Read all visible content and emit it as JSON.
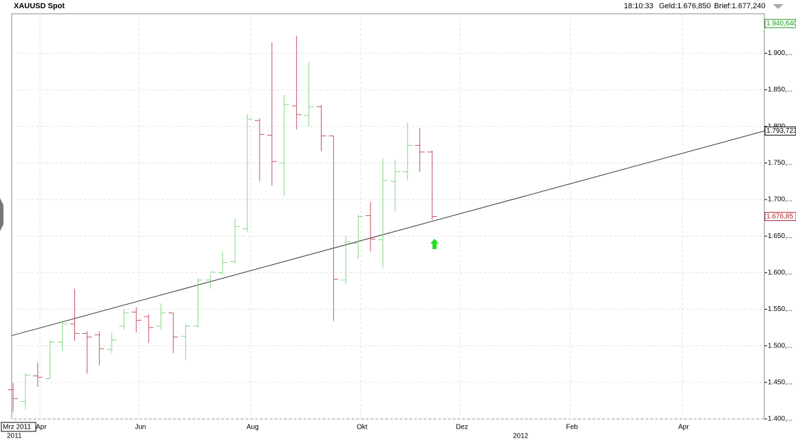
{
  "chart_data": {
    "type": "ohlc",
    "title": "XAUUSD Spot",
    "time": "18:10:33",
    "bid": "Geld:1.676,850",
    "ask": "Brief:1.677,240",
    "categories": [
      null,
      null,
      null,
      null,
      null,
      null,
      null,
      null,
      null,
      null,
      null,
      null,
      null,
      null,
      null,
      null,
      null,
      null,
      null,
      null,
      null,
      null,
      null,
      null,
      null,
      null,
      null,
      null,
      null,
      null,
      null,
      null,
      null,
      null,
      null
    ],
    "series": [
      {
        "open": [
          1440,
          1424,
          1459,
          1455,
          1505,
          1530,
          1517,
          1515,
          1495,
          1527,
          1546,
          1540,
          1527,
          1545,
          1513,
          1527,
          1590,
          1600,
          1615,
          1660,
          1808,
          1788,
          1750,
          1828,
          1815,
          1827,
          1787,
          1590,
          1640,
          1678,
          1645,
          1725,
          1738,
          1774,
          1765
        ],
        "high": [
          1449,
          1462,
          1477,
          1508,
          1533,
          1578,
          1520,
          1520,
          1518,
          1550,
          1553,
          1543,
          1558,
          1545,
          1530,
          1592,
          1598,
          1629,
          1674,
          1817,
          1811,
          1915,
          1843,
          1924,
          1888,
          1829,
          1787,
          1650,
          1680,
          1697,
          1756,
          1755,
          1805,
          1798,
          1767
        ],
        "low": [
          1410,
          1413,
          1444,
          1455,
          1493,
          1507,
          1462,
          1473,
          1490,
          1522,
          1518,
          1504,
          1522,
          1490,
          1480,
          1525,
          1578,
          1598,
          1613,
          1655,
          1725,
          1719,
          1705,
          1796,
          1800,
          1766,
          1534,
          1584,
          1619,
          1629,
          1606,
          1684,
          1726,
          1738,
          1672
        ],
        "close": [
          1428,
          1460,
          1457,
          1505,
          1530,
          1517,
          1512,
          1496,
          1508,
          1545,
          1535,
          1525,
          1545,
          1512,
          1527,
          1590,
          1601,
          1614,
          1663,
          1810,
          1789,
          1752,
          1830,
          1816,
          1827,
          1787,
          1591,
          1642,
          1677,
          1646,
          1726,
          1738,
          1774,
          1765,
          1677
        ]
      }
    ],
    "up_color": "#7fd87f",
    "down_color": "#c4505e",
    "ylim": [
      1400,
      1954
    ],
    "yticks": [
      {
        "value": 1400,
        "label": "1.400,..."
      },
      {
        "value": 1450,
        "label": "1.450,..."
      },
      {
        "value": 1500,
        "label": "1.500,..."
      },
      {
        "value": 1550,
        "label": "1.550,..."
      },
      {
        "value": 1600,
        "label": "1.600,..."
      },
      {
        "value": 1650,
        "label": "1.650,..."
      },
      {
        "value": 1700,
        "label": "1.700,..."
      },
      {
        "value": 1750,
        "label": "1.750,..."
      },
      {
        "value": 1800,
        "label": "1.800,..."
      },
      {
        "value": 1850,
        "label": "1.850,..."
      },
      {
        "value": 1900,
        "label": "1.900,..."
      }
    ],
    "grid": true,
    "x_start_label": "Mrz 2011",
    "x_labels": [
      "Apr",
      "Jun",
      "Aug",
      "Okt",
      "Dez",
      "Feb",
      "Apr"
    ],
    "x_year_labels": [
      "2011",
      "2012"
    ],
    "trendline": {
      "start": 1514,
      "end": 1793.723,
      "end_label": "1.793,723"
    },
    "high_tag": {
      "value": 1940.64,
      "label": "1.940,640"
    },
    "last_tag": {
      "value": 1676.85,
      "label": "1.676,85"
    }
  }
}
